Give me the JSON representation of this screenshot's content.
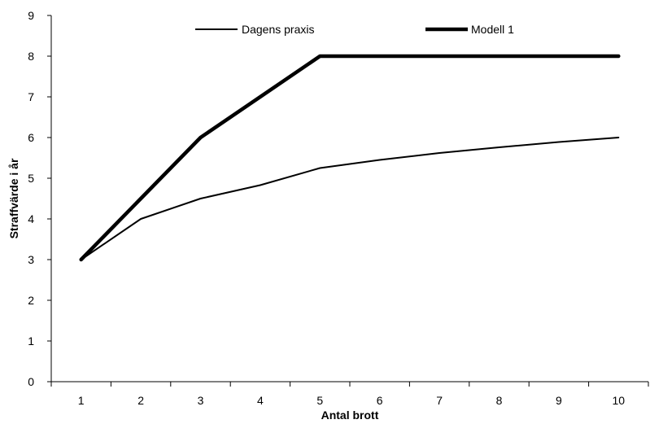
{
  "chart_data": {
    "type": "line",
    "x": [
      1,
      2,
      3,
      4,
      5,
      6,
      7,
      8,
      9,
      10
    ],
    "categories": [
      "1",
      "2",
      "3",
      "4",
      "5",
      "6",
      "7",
      "8",
      "9",
      "10"
    ],
    "series": [
      {
        "name": "Dagens praxis",
        "values": [
          3,
          4,
          4.5,
          4.83,
          5.25,
          5.45,
          5.62,
          5.76,
          5.89,
          6
        ],
        "color": "#000000",
        "line_style": "thin"
      },
      {
        "name": "Modell 1",
        "values": [
          3,
          4.5,
          6,
          7,
          8,
          8,
          8,
          8,
          8,
          8
        ],
        "color": "#000000",
        "line_style": "thick"
      }
    ],
    "xlabel": "Antal brott",
    "ylabel": "Straffvärde i år",
    "ylim": [
      0,
      9
    ],
    "yticks": [
      "0",
      "1",
      "2",
      "3",
      "4",
      "5",
      "6",
      "7",
      "8",
      "9"
    ],
    "grid": false,
    "legend_position": "top"
  }
}
